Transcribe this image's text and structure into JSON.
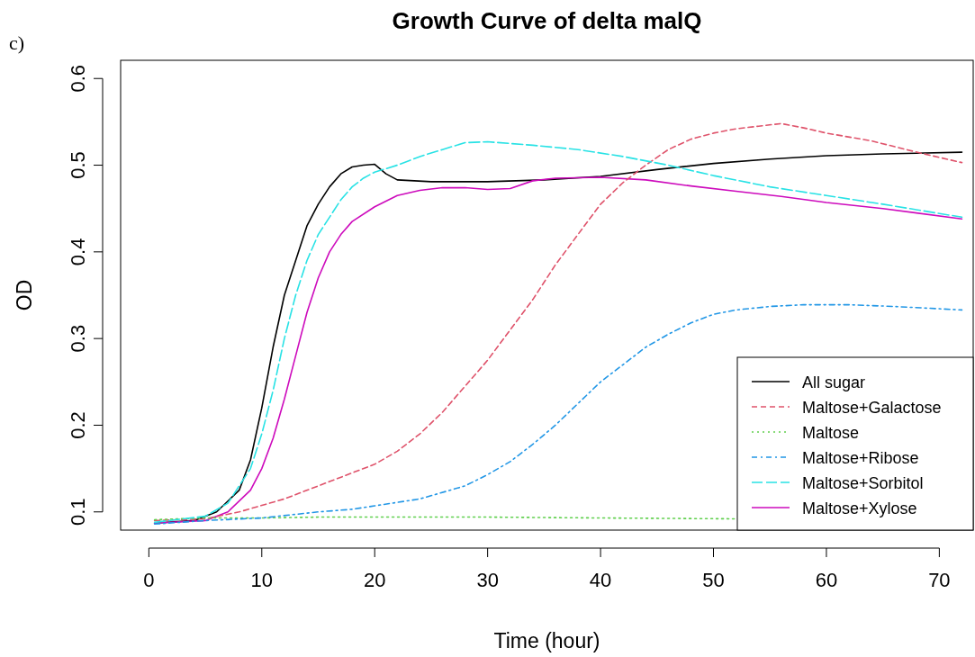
{
  "chart_data": {
    "type": "line",
    "title": "Growth Curve of delta malQ",
    "xlabel": "Time (hour)",
    "ylabel": "OD",
    "annotations": [
      "c)"
    ],
    "xlim": [
      -2.5,
      73
    ],
    "ylim": [
      0.079,
      0.621
    ],
    "xticks": [
      0,
      10,
      20,
      30,
      40,
      50,
      60,
      70
    ],
    "yticks": [
      0.1,
      0.2,
      0.3,
      0.4,
      0.5,
      0.6
    ],
    "grid": false,
    "legend": "bottom right",
    "marker": "none",
    "series": [
      {
        "name": "All sugar",
        "color": "#000000",
        "line_style": "solid",
        "x": [
          0.5,
          4,
          6,
          8,
          9,
          10,
          11,
          12,
          13,
          14,
          15,
          16,
          17,
          18,
          19,
          20,
          21,
          22,
          25,
          30,
          35,
          40,
          45,
          50,
          55,
          60,
          65,
          72
        ],
        "values": [
          0.087,
          0.09,
          0.1,
          0.125,
          0.16,
          0.22,
          0.29,
          0.35,
          0.39,
          0.43,
          0.455,
          0.475,
          0.49,
          0.498,
          0.5,
          0.501,
          0.49,
          0.483,
          0.481,
          0.481,
          0.483,
          0.487,
          0.495,
          0.502,
          0.507,
          0.511,
          0.513,
          0.515
        ]
      },
      {
        "name": "Maltose+Galactose",
        "color": "#df536b",
        "line_style": "dashed",
        "x": [
          0.5,
          5,
          8,
          12,
          16,
          20,
          22,
          24,
          26,
          28,
          30,
          32,
          34,
          36,
          38,
          40,
          42,
          44,
          46,
          48,
          50,
          52,
          54,
          56,
          58,
          60,
          64,
          68,
          72
        ],
        "values": [
          0.09,
          0.092,
          0.1,
          0.115,
          0.135,
          0.155,
          0.17,
          0.19,
          0.215,
          0.245,
          0.275,
          0.31,
          0.345,
          0.385,
          0.42,
          0.455,
          0.48,
          0.5,
          0.518,
          0.53,
          0.537,
          0.542,
          0.545,
          0.548,
          0.543,
          0.537,
          0.528,
          0.515,
          0.503
        ]
      },
      {
        "name": "Maltose",
        "color": "#61d04f",
        "line_style": "dotted",
        "x": [
          0.5,
          5,
          10,
          15,
          30,
          40,
          52
        ],
        "values": [
          0.091,
          0.093,
          0.093,
          0.094,
          0.094,
          0.093,
          0.092
        ]
      },
      {
        "name": "Maltose+Ribose",
        "color": "#2297e6",
        "line_style": "dashdot",
        "x": [
          0.5,
          5,
          10,
          15,
          18,
          20,
          24,
          28,
          30,
          32,
          34,
          36,
          38,
          40,
          42,
          44,
          46,
          48,
          50,
          52,
          55,
          58,
          62,
          66,
          72
        ],
        "values": [
          0.086,
          0.09,
          0.093,
          0.1,
          0.103,
          0.107,
          0.115,
          0.13,
          0.143,
          0.158,
          0.178,
          0.2,
          0.225,
          0.25,
          0.27,
          0.29,
          0.305,
          0.318,
          0.328,
          0.333,
          0.337,
          0.339,
          0.339,
          0.337,
          0.333
        ]
      },
      {
        "name": "Maltose+Sorbitol",
        "color": "#28e2e5",
        "line_style": "longdash",
        "x": [
          0.5,
          5,
          7,
          9,
          10,
          11,
          12,
          13,
          14,
          15,
          16,
          17,
          18,
          19,
          20,
          22,
          24,
          26,
          28,
          30,
          34,
          38,
          42,
          46,
          50,
          55,
          60,
          65,
          72
        ],
        "values": [
          0.088,
          0.095,
          0.11,
          0.15,
          0.19,
          0.24,
          0.3,
          0.35,
          0.39,
          0.42,
          0.44,
          0.46,
          0.475,
          0.485,
          0.492,
          0.5,
          0.51,
          0.518,
          0.526,
          0.527,
          0.523,
          0.518,
          0.51,
          0.5,
          0.488,
          0.475,
          0.465,
          0.455,
          0.44
        ]
      },
      {
        "name": "Maltose+Xylose",
        "color": "#cd0bbc",
        "line_style": "solid",
        "x": [
          0.5,
          5,
          7,
          9,
          10,
          11,
          12,
          13,
          14,
          15,
          16,
          17,
          18,
          20,
          22,
          24,
          26,
          28,
          30,
          32,
          34,
          36,
          40,
          44,
          48,
          52,
          56,
          60,
          65,
          72
        ],
        "values": [
          0.087,
          0.09,
          0.1,
          0.125,
          0.15,
          0.185,
          0.23,
          0.28,
          0.33,
          0.37,
          0.4,
          0.42,
          0.435,
          0.452,
          0.465,
          0.471,
          0.474,
          0.474,
          0.472,
          0.473,
          0.482,
          0.485,
          0.486,
          0.483,
          0.476,
          0.47,
          0.464,
          0.457,
          0.45,
          0.438
        ]
      }
    ]
  }
}
